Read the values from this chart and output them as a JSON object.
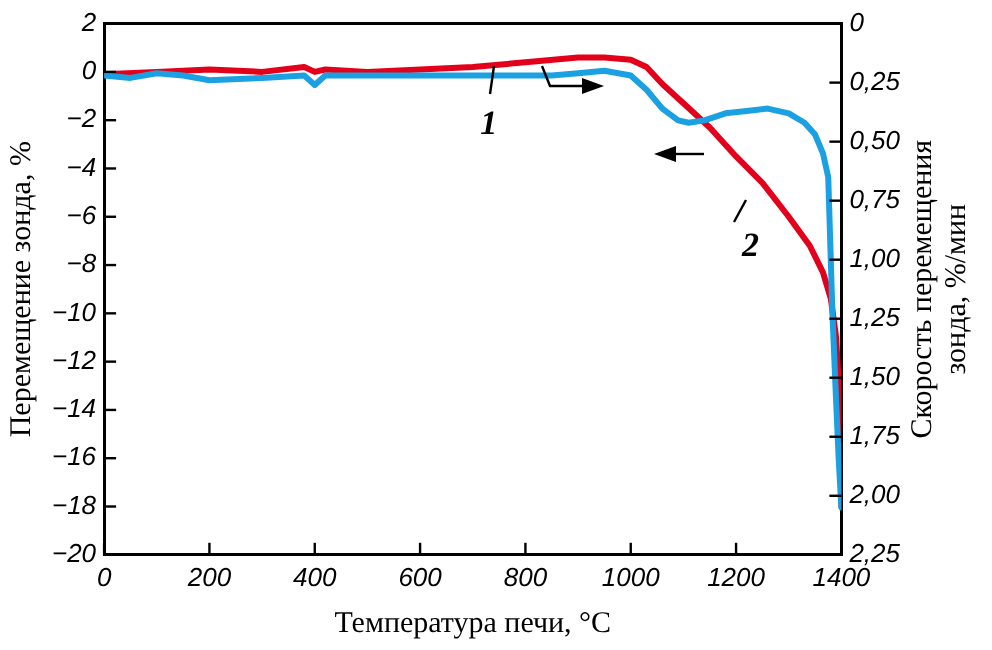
{
  "chart_data": {
    "type": "line",
    "xlabel": "Температура печи, °C",
    "ylabel": "Перемещение зонда, %",
    "y2label": "Скорость перемещения\nзонда, %/мин",
    "xlim": [
      0,
      1400
    ],
    "xticks": [
      0,
      200,
      400,
      600,
      800,
      1000,
      1200,
      1400
    ],
    "ylim": [
      -20,
      2
    ],
    "yticks": [
      2,
      0,
      {
        "value": -2,
        "label": "−2"
      },
      {
        "value": -4,
        "label": "−4"
      },
      {
        "value": -6,
        "label": "−6"
      },
      {
        "value": -8,
        "label": "−8"
      },
      {
        "value": -10,
        "label": "−10"
      },
      {
        "value": -12,
        "label": "−12"
      },
      {
        "value": -14,
        "label": "−14"
      },
      {
        "value": -16,
        "label": "−16"
      },
      {
        "value": -18,
        "label": "−18"
      },
      {
        "value": -20,
        "label": "−20"
      }
    ],
    "y2lim": [
      2.25,
      0
    ],
    "y2ticks": [
      0,
      {
        "value": 0.25,
        "label": "0,25"
      },
      {
        "value": 0.5,
        "label": "0,50"
      },
      {
        "value": 0.75,
        "label": "0,75"
      },
      {
        "value": 1,
        "label": "1,00"
      },
      {
        "value": 1.25,
        "label": "1,25"
      },
      {
        "value": 1.5,
        "label": "1,50"
      },
      {
        "value": 1.75,
        "label": "1,75"
      },
      {
        "value": 2,
        "label": "2,00"
      },
      {
        "value": 2.25,
        "label": "2,25"
      }
    ],
    "marker": "none",
    "series": [
      {
        "name": "1",
        "color": "#1ba1e2",
        "axis": "y2",
        "x": [
          0,
          50,
          100,
          150,
          200,
          300,
          380,
          400,
          420,
          500,
          600,
          700,
          800,
          850,
          900,
          950,
          1000,
          1030,
          1060,
          1090,
          1110,
          1140,
          1180,
          1220,
          1260,
          1300,
          1330,
          1350,
          1365,
          1375,
          1383,
          1390,
          1395,
          1400
        ],
        "values": [
          0.22,
          0.23,
          0.21,
          0.22,
          0.24,
          0.23,
          0.22,
          0.26,
          0.22,
          0.22,
          0.22,
          0.22,
          0.22,
          0.22,
          0.21,
          0.2,
          0.22,
          0.28,
          0.36,
          0.41,
          0.42,
          0.41,
          0.38,
          0.37,
          0.36,
          0.38,
          0.42,
          0.47,
          0.55,
          0.65,
          1.23,
          1.6,
          1.85,
          2.05
        ]
      },
      {
        "name": "2",
        "color": "#e3001b",
        "x": [
          0,
          100,
          200,
          300,
          380,
          400,
          420,
          500,
          600,
          700,
          800,
          900,
          950,
          1000,
          1030,
          1060,
          1100,
          1150,
          1200,
          1250,
          1300,
          1340,
          1365,
          1380,
          1390,
          1395,
          1400
        ],
        "values": [
          -0.1,
          0,
          0.1,
          0,
          0.2,
          0,
          0.1,
          0,
          0.1,
          0.2,
          0.4,
          0.6,
          0.6,
          0.5,
          0.2,
          -0.5,
          -1.3,
          -2.3,
          -3.5,
          -4.6,
          -6,
          -7.2,
          -8.3,
          -9.4,
          -11,
          -13,
          -18
        ]
      }
    ]
  }
}
